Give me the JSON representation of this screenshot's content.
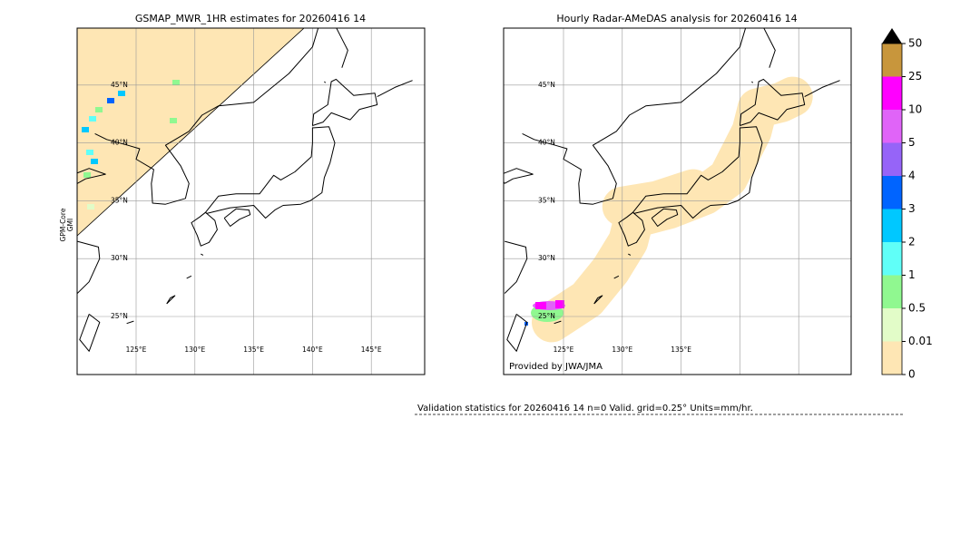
{
  "panels": [
    {
      "title": "GSMAP_MWR_1HR estimates for 20260416 14",
      "lat_labels": [
        "45°N",
        "40°N",
        "35°N",
        "30°N",
        "25°N"
      ],
      "lon_labels": [
        "125°E",
        "130°E",
        "135°E",
        "140°E",
        "145°E"
      ],
      "sensor_label": [
        "GPM-Core",
        "GMI"
      ]
    },
    {
      "title": "Hourly Radar-AMeDAS analysis for 20260416 14",
      "lat_labels": [
        "45°N",
        "40°N",
        "35°N",
        "30°N",
        "25°N"
      ],
      "lon_labels": [
        "125°E",
        "130°E",
        "135°E"
      ],
      "credit": "Provided by JWA/JMA"
    }
  ],
  "colorbar": {
    "labels": [
      "0",
      "0.01",
      "0.5",
      "1",
      "2",
      "3",
      "4",
      "5",
      "10",
      "25",
      "50"
    ],
    "colors": [
      "#fee6b4",
      "#e2fcc8",
      "#90f890",
      "#60fff8",
      "#00c8ff",
      "#0064ff",
      "#9664f8",
      "#e064f8",
      "#ff00ff",
      "#c8963c"
    ]
  },
  "validation": "Validation statistics for 20260416 14  n=0 Valid. grid=0.25° Units=mm/hr."
}
